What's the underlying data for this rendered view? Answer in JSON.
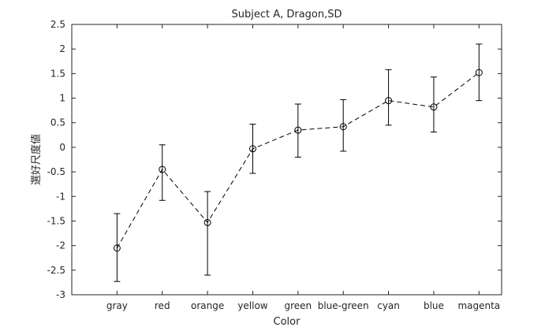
{
  "chart_data": {
    "type": "line",
    "title": "Subject A, Dragon,SD",
    "xlabel": "Color",
    "ylabel": "選好尺度値",
    "categories": [
      "gray",
      "red",
      "orange",
      "yellow",
      "green",
      "blue-green",
      "cyan",
      "blue",
      "magenta"
    ],
    "series": [
      {
        "name": "Subject A",
        "values": [
          -2.05,
          -0.45,
          -1.53,
          -0.03,
          0.35,
          0.42,
          0.95,
          0.82,
          1.52
        ],
        "error_lower": [
          0.68,
          0.63,
          1.07,
          0.5,
          0.55,
          0.5,
          0.5,
          0.51,
          0.57
        ],
        "error_upper": [
          0.7,
          0.5,
          0.63,
          0.5,
          0.53,
          0.55,
          0.63,
          0.61,
          0.58
        ]
      }
    ],
    "ylim": [
      -3,
      2.5
    ],
    "yticks": [
      -3,
      -2.5,
      -2,
      -1.5,
      -1,
      -0.5,
      0,
      0.5,
      1,
      1.5,
      2,
      2.5
    ],
    "xlim": [
      0,
      9.5
    ],
    "line_style": "dashed",
    "marker": "circle",
    "grid": false,
    "colors": {
      "line": "#000000",
      "axis": "#262626"
    }
  }
}
